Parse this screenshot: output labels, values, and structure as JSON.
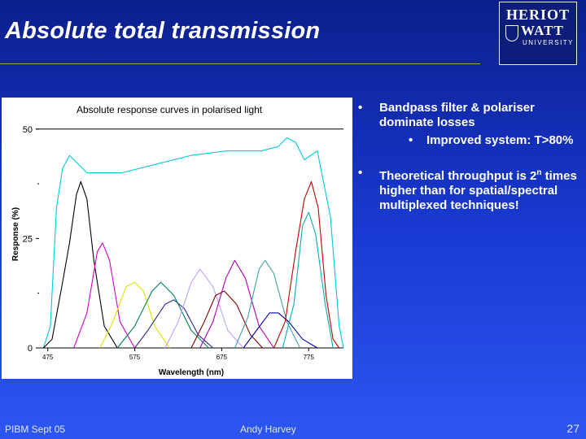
{
  "slide": {
    "title": "Absolute total transmission",
    "logo": {
      "line1": "HERIOT",
      "line2": "WATT",
      "line3": "UNIVERSITY"
    },
    "bullets": [
      {
        "text": "Bandpass filter & polariser dominate losses",
        "sub": [
          "Improved system: T>80%"
        ]
      },
      {
        "text_before_sup": "Theoretical throughput is 2",
        "sup": "n",
        "text_after_sup": " times higher than for spatial/spectral multiplexed techniques!",
        "sub": []
      }
    ],
    "bullet_symbol": "•",
    "footer_left": "PIBM Sept 05",
    "footer_center": "Andy Harvey",
    "page_number": "27"
  },
  "chart_data": {
    "type": "line",
    "title": "Absolute response curves in polarised light",
    "xlabel": "Wavelength (nm)",
    "ylabel": "Response (%)",
    "xlim": [
      465,
      815
    ],
    "ylim": [
      0,
      52
    ],
    "x_ticks": [
      475,
      575,
      675,
      775
    ],
    "y_ticks": [
      0,
      25,
      50
    ],
    "grid": false,
    "series": [
      {
        "color": "#00c8e0",
        "points": [
          [
            470,
            0
          ],
          [
            478,
            5
          ],
          [
            485,
            32
          ],
          [
            492,
            41
          ],
          [
            500,
            44
          ],
          [
            520,
            40
          ],
          [
            560,
            40
          ],
          [
            600,
            42
          ],
          [
            640,
            44
          ],
          [
            680,
            45
          ],
          [
            720,
            45
          ],
          [
            740,
            46
          ],
          [
            750,
            48
          ],
          [
            760,
            47
          ],
          [
            770,
            43
          ],
          [
            785,
            45
          ],
          [
            800,
            30
          ],
          [
            810,
            5
          ],
          [
            815,
            0
          ]
        ]
      },
      {
        "color": "#000000",
        "points": [
          [
            470,
            0
          ],
          [
            480,
            2
          ],
          [
            492,
            15
          ],
          [
            500,
            24
          ],
          [
            508,
            35
          ],
          [
            513,
            38
          ],
          [
            520,
            34
          ],
          [
            528,
            20
          ],
          [
            540,
            5
          ],
          [
            555,
            0
          ]
        ]
      },
      {
        "color": "#d000d0",
        "points": [
          [
            505,
            0
          ],
          [
            520,
            8
          ],
          [
            532,
            22
          ],
          [
            538,
            24
          ],
          [
            546,
            20
          ],
          [
            558,
            6
          ],
          [
            575,
            0
          ]
        ]
      },
      {
        "color": "#e0e000",
        "points": [
          [
            535,
            0
          ],
          [
            550,
            6
          ],
          [
            565,
            14
          ],
          [
            575,
            15
          ],
          [
            585,
            13
          ],
          [
            598,
            5
          ],
          [
            615,
            0
          ]
        ]
      },
      {
        "color": "#2a2a8a",
        "points": [
          [
            575,
            0
          ],
          [
            590,
            4
          ],
          [
            610,
            10
          ],
          [
            620,
            11
          ],
          [
            632,
            9
          ],
          [
            648,
            3
          ],
          [
            665,
            0
          ]
        ]
      },
      {
        "color": "#008060",
        "points": [
          [
            555,
            0
          ],
          [
            575,
            5
          ],
          [
            595,
            13
          ],
          [
            605,
            15
          ],
          [
            620,
            12
          ],
          [
            640,
            4
          ],
          [
            660,
            0
          ]
        ]
      },
      {
        "color": "#c0a0ff",
        "points": [
          [
            610,
            0
          ],
          [
            625,
            6
          ],
          [
            640,
            15
          ],
          [
            650,
            18
          ],
          [
            665,
            14
          ],
          [
            682,
            4
          ],
          [
            700,
            0
          ]
        ]
      },
      {
        "color": "#800000",
        "points": [
          [
            640,
            0
          ],
          [
            655,
            6
          ],
          [
            668,
            12
          ],
          [
            678,
            13
          ],
          [
            692,
            10
          ],
          [
            708,
            3
          ],
          [
            722,
            0
          ]
        ]
      },
      {
        "color": "#b000b0",
        "points": [
          [
            650,
            0
          ],
          [
            665,
            6
          ],
          [
            680,
            16
          ],
          [
            690,
            20
          ],
          [
            702,
            16
          ],
          [
            718,
            5
          ],
          [
            735,
            0
          ]
        ]
      },
      {
        "color": "#40a0a0",
        "points": [
          [
            690,
            0
          ],
          [
            705,
            7
          ],
          [
            718,
            18
          ],
          [
            725,
            20
          ],
          [
            735,
            17
          ],
          [
            750,
            6
          ],
          [
            765,
            0
          ]
        ]
      },
      {
        "color": "#0000b0",
        "points": [
          [
            700,
            0
          ],
          [
            715,
            4
          ],
          [
            730,
            8
          ],
          [
            740,
            8
          ],
          [
            752,
            6
          ],
          [
            768,
            2
          ],
          [
            785,
            0
          ]
        ]
      },
      {
        "color": "#c00000",
        "points": [
          [
            735,
            0
          ],
          [
            748,
            6
          ],
          [
            760,
            22
          ],
          [
            770,
            34
          ],
          [
            778,
            38
          ],
          [
            786,
            32
          ],
          [
            795,
            12
          ],
          [
            803,
            2
          ],
          [
            810,
            0
          ]
        ]
      },
      {
        "color": "#00b0b0",
        "points": [
          [
            745,
            0
          ],
          [
            758,
            10
          ],
          [
            768,
            28
          ],
          [
            775,
            31
          ],
          [
            783,
            26
          ],
          [
            794,
            10
          ],
          [
            803,
            0
          ]
        ]
      }
    ]
  }
}
